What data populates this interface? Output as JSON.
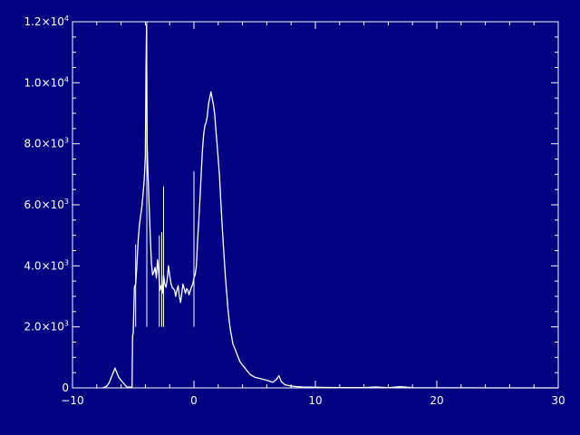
{
  "chart_data": {
    "type": "line",
    "title": "",
    "xlabel": "",
    "ylabel": "",
    "xlim": [
      -10,
      30
    ],
    "ylim": [
      0,
      12000
    ],
    "grid": false,
    "x_ticks": [
      -10,
      0,
      10,
      20,
      30
    ],
    "x_tick_labels": [
      "−10",
      "0",
      "10",
      "20",
      "30"
    ],
    "y_ticks": [
      0,
      2000,
      4000,
      6000,
      8000,
      10000,
      12000
    ],
    "y_tick_labels": [
      {
        "mantissa": "0",
        "exp": ""
      },
      {
        "mantissa": "2.0×10",
        "exp": "3"
      },
      {
        "mantissa": "4.0×10",
        "exp": "3"
      },
      {
        "mantissa": "6.0×10",
        "exp": "3"
      },
      {
        "mantissa": "8.0×10",
        "exp": "3"
      },
      {
        "mantissa": "1.0×10",
        "exp": "4"
      },
      {
        "mantissa": "1.2×10",
        "exp": "4"
      }
    ],
    "series": [
      {
        "color": "#ffffff",
        "points": [
          [
            -7.5,
            0
          ],
          [
            -7.2,
            50
          ],
          [
            -7.0,
            150
          ],
          [
            -6.8,
            350
          ],
          [
            -6.6,
            550
          ],
          [
            -6.5,
            650
          ],
          [
            -6.4,
            550
          ],
          [
            -6.2,
            350
          ],
          [
            -6.0,
            250
          ],
          [
            -5.8,
            150
          ],
          [
            -5.6,
            60
          ],
          [
            -5.5,
            30
          ],
          [
            -5.2,
            20
          ],
          [
            -5.1,
            30
          ],
          [
            -5.05,
            1700
          ],
          [
            -5.0,
            1800
          ],
          [
            -4.9,
            3300
          ],
          [
            -4.8,
            3400
          ],
          [
            -4.7,
            4000
          ],
          [
            -4.6,
            4800
          ],
          [
            -4.5,
            5300
          ],
          [
            -4.4,
            5600
          ],
          [
            -4.3,
            5900
          ],
          [
            -4.2,
            6300
          ],
          [
            -4.1,
            6800
          ],
          [
            -4.0,
            7600
          ],
          [
            -3.95,
            10500
          ],
          [
            -3.9,
            11900
          ],
          [
            -3.85,
            8000
          ],
          [
            -3.8,
            7200
          ],
          [
            -3.7,
            6100
          ],
          [
            -3.6,
            5000
          ],
          [
            -3.5,
            4100
          ],
          [
            -3.4,
            3700
          ],
          [
            -3.3,
            3800
          ],
          [
            -3.2,
            3950
          ],
          [
            -3.1,
            3600
          ],
          [
            -3.0,
            4200
          ],
          [
            -2.9,
            3800
          ],
          [
            -2.8,
            3200
          ],
          [
            -2.7,
            3350
          ],
          [
            -2.6,
            3100
          ],
          [
            -2.5,
            3700
          ],
          [
            -2.4,
            3400
          ],
          [
            -2.3,
            3300
          ],
          [
            -2.2,
            3550
          ],
          [
            -2.1,
            4000
          ],
          [
            -2.0,
            3700
          ],
          [
            -1.9,
            3450
          ],
          [
            -1.8,
            3300
          ],
          [
            -1.7,
            3250
          ],
          [
            -1.6,
            3200
          ],
          [
            -1.5,
            3000
          ],
          [
            -1.4,
            3200
          ],
          [
            -1.3,
            3350
          ],
          [
            -1.2,
            3000
          ],
          [
            -1.1,
            2800
          ],
          [
            -1.0,
            3100
          ],
          [
            -0.9,
            3400
          ],
          [
            -0.8,
            3250
          ],
          [
            -0.7,
            3100
          ],
          [
            -0.6,
            3250
          ],
          [
            -0.5,
            3200
          ],
          [
            -0.4,
            3050
          ],
          [
            -0.3,
            3200
          ],
          [
            -0.2,
            3300
          ],
          [
            -0.1,
            3400
          ],
          [
            0.0,
            3600
          ],
          [
            0.1,
            3700
          ],
          [
            0.2,
            4000
          ],
          [
            0.3,
            4800
          ],
          [
            0.4,
            5500
          ],
          [
            0.5,
            6200
          ],
          [
            0.6,
            7000
          ],
          [
            0.7,
            7800
          ],
          [
            0.8,
            8300
          ],
          [
            0.9,
            8600
          ],
          [
            1.0,
            8700
          ],
          [
            1.1,
            8900
          ],
          [
            1.2,
            9300
          ],
          [
            1.3,
            9500
          ],
          [
            1.4,
            9700
          ],
          [
            1.5,
            9500
          ],
          [
            1.6,
            9300
          ],
          [
            1.7,
            9000
          ],
          [
            1.8,
            8500
          ],
          [
            1.9,
            8000
          ],
          [
            2.0,
            7500
          ],
          [
            2.1,
            7000
          ],
          [
            2.2,
            6200
          ],
          [
            2.3,
            5500
          ],
          [
            2.4,
            4800
          ],
          [
            2.5,
            4200
          ],
          [
            2.6,
            3600
          ],
          [
            2.7,
            3100
          ],
          [
            2.8,
            2600
          ],
          [
            2.9,
            2200
          ],
          [
            3.0,
            1900
          ],
          [
            3.1,
            1700
          ],
          [
            3.2,
            1450
          ],
          [
            3.4,
            1250
          ],
          [
            3.6,
            1050
          ],
          [
            3.8,
            850
          ],
          [
            4.0,
            750
          ],
          [
            4.3,
            600
          ],
          [
            4.6,
            450
          ],
          [
            5.0,
            350
          ],
          [
            5.5,
            300
          ],
          [
            6.0,
            250
          ],
          [
            6.5,
            180
          ],
          [
            6.8,
            280
          ],
          [
            7.0,
            400
          ],
          [
            7.2,
            200
          ],
          [
            7.5,
            100
          ],
          [
            8.0,
            60
          ],
          [
            8.5,
            40
          ],
          [
            9.0,
            30
          ],
          [
            10.0,
            20
          ],
          [
            11.0,
            15
          ],
          [
            12.0,
            12
          ],
          [
            13.0,
            10
          ],
          [
            14.0,
            8
          ],
          [
            15.0,
            30
          ],
          [
            16.0,
            6
          ],
          [
            17.0,
            40
          ],
          [
            18.0,
            5
          ],
          [
            19.0,
            4
          ],
          [
            20.0,
            3
          ],
          [
            21.0,
            3
          ],
          [
            22.0,
            2
          ],
          [
            23.0,
            2
          ],
          [
            24.0,
            1
          ],
          [
            25.0,
            1
          ],
          [
            26.0,
            1
          ],
          [
            27.0,
            0
          ],
          [
            28.0,
            0
          ],
          [
            29.0,
            0
          ],
          [
            30.0,
            0
          ]
        ]
      }
    ],
    "spikes": [
      [
        -4.8,
        4700
      ],
      [
        -3.88,
        12000
      ],
      [
        -2.85,
        5000
      ],
      [
        -2.65,
        5100
      ],
      [
        -2.5,
        6600
      ],
      [
        0.0,
        7100
      ]
    ]
  }
}
